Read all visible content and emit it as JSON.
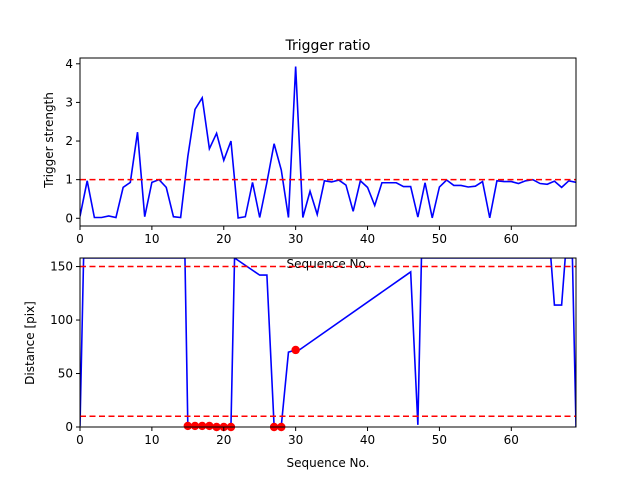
{
  "chart_data": [
    {
      "type": "line",
      "title": "Trigger ratio",
      "xlabel": "Sequence No.",
      "ylabel": "Trigger strength",
      "xlim": [
        0,
        69
      ],
      "ylim": [
        -0.2,
        4.15
      ],
      "xticks": [
        0,
        10,
        20,
        30,
        40,
        50,
        60
      ],
      "yticks": [
        0,
        1,
        2,
        3,
        4
      ],
      "grid": false,
      "series": [
        {
          "color": "#0000ff",
          "x": [
            0,
            1,
            2,
            3,
            4,
            5,
            6,
            7,
            8,
            9,
            10,
            11,
            12,
            13,
            14,
            15,
            16,
            17,
            18,
            19,
            20,
            21,
            22,
            23,
            24,
            25,
            26,
            27,
            28,
            29,
            30,
            31,
            32,
            33,
            34,
            35,
            36,
            37,
            38,
            39,
            40,
            41,
            42,
            43,
            44,
            45,
            46,
            47,
            48,
            49,
            50,
            51,
            52,
            53,
            54,
            55,
            56,
            57,
            58,
            59,
            60,
            61,
            62,
            63,
            64,
            65,
            66,
            67,
            68,
            69
          ],
          "y": [
            0.05,
            0.97,
            0.02,
            0.02,
            0.06,
            0.02,
            0.8,
            0.93,
            2.23,
            0.04,
            0.93,
            1.0,
            0.8,
            0.04,
            0.02,
            1.6,
            2.82,
            3.12,
            1.8,
            2.2,
            1.5,
            2.0,
            0.01,
            0.04,
            0.93,
            0.02,
            0.93,
            1.93,
            1.25,
            0.02,
            3.93,
            0.02,
            0.7,
            0.1,
            0.97,
            0.94,
            0.99,
            0.86,
            0.18,
            0.97,
            0.8,
            0.33,
            0.92,
            0.92,
            0.92,
            0.82,
            0.82,
            0.03,
            0.92,
            0.01,
            0.81,
            0.99,
            0.85,
            0.85,
            0.81,
            0.83,
            0.95,
            0.01,
            0.97,
            0.95,
            0.95,
            0.9,
            0.97,
            1.0,
            0.9,
            0.88,
            0.96,
            0.8,
            0.97,
            0.93
          ]
        }
      ],
      "hlines": [
        {
          "y": 1.0,
          "color": "#ff0000",
          "style": "dashed"
        }
      ]
    },
    {
      "type": "line",
      "title": "",
      "xlabel": "Sequence No.",
      "ylabel": "Distance [pix]",
      "xlim": [
        0,
        69
      ],
      "ylim": [
        0,
        158
      ],
      "xticks": [
        0,
        10,
        20,
        30,
        40,
        50,
        60
      ],
      "yticks": [
        0,
        50,
        100,
        150
      ],
      "grid": false,
      "series": [
        {
          "color": "#0000ff",
          "note_clipped_above": true,
          "x": [
            0,
            0.5,
            14.6,
            15,
            16,
            17,
            18,
            19,
            20,
            21,
            21.5,
            25,
            26,
            27,
            28,
            29,
            30,
            30.5,
            46,
            47,
            47.5,
            65.5,
            66,
            67,
            67.5,
            68,
            68.5,
            69
          ],
          "y": [
            1,
            158,
            158,
            1,
            1,
            1,
            1,
            1,
            1,
            1,
            158,
            142,
            142,
            1,
            1,
            70,
            72,
            72,
            145,
            2,
            158,
            158,
            114,
            114,
            158,
            158,
            158,
            0
          ]
        }
      ],
      "points": {
        "color": "#ff0000",
        "x": [
          15,
          16,
          17,
          18,
          19,
          20,
          21,
          27,
          28,
          30
        ],
        "y": [
          1,
          1,
          1,
          1,
          0,
          0,
          0,
          0,
          0,
          72
        ]
      },
      "hlines": [
        {
          "y": 150,
          "color": "#ff0000",
          "style": "dashed"
        },
        {
          "y": 10,
          "color": "#ff0000",
          "style": "dashed"
        }
      ]
    }
  ]
}
